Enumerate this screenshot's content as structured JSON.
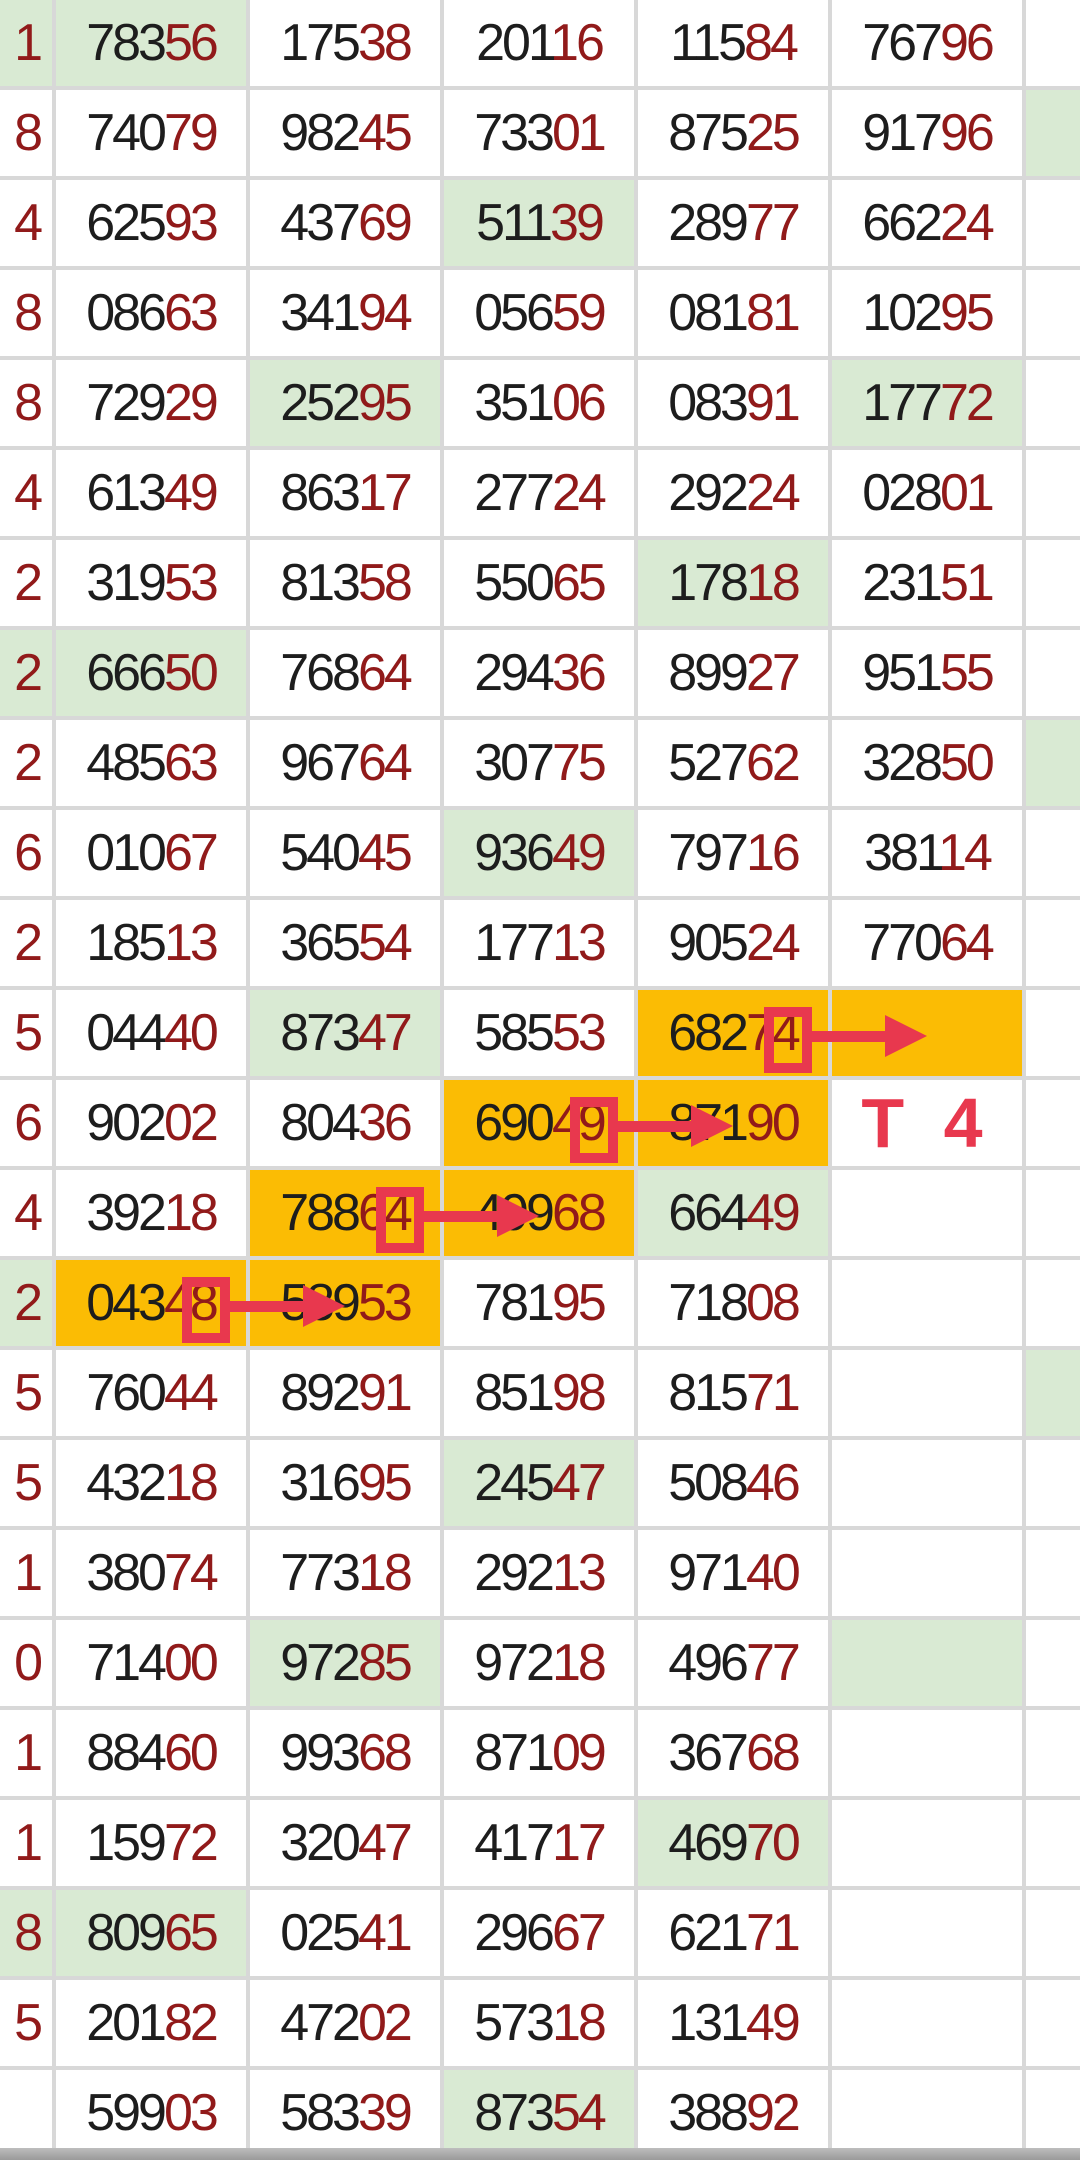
{
  "meta": {
    "description": "Lottery-style number grid with highlighted cells and red annotation marks",
    "red_digit_count": 2,
    "colors": {
      "cell_bg": "#ffffff",
      "grid_line": "#d8d8d8",
      "green_highlight": "#d9ead3",
      "orange_highlight": "#fbbc04",
      "digit_black": "#1d1d1d",
      "digit_red": "#911a1a",
      "annotation_red": "#e8384e"
    }
  },
  "annotations": {
    "t4_label": "T 4",
    "boxes_and_arrows": [
      {
        "row": 12,
        "col": 4,
        "boxed_digit": "4",
        "points_to_col": 5
      },
      {
        "row": 13,
        "col": 3,
        "boxed_digit": "9",
        "points_to_col": 4
      },
      {
        "row": 14,
        "col": 2,
        "boxed_digit": "4",
        "points_to_col": 3
      },
      {
        "row": 15,
        "col": 1,
        "boxed_digit": "8",
        "points_to_col": 2
      }
    ]
  },
  "table": {
    "rows": [
      {
        "left": {
          "d": "1",
          "bg": "green"
        },
        "cells": [
          {
            "v": "78356",
            "bg": "green"
          },
          {
            "v": "17538"
          },
          {
            "v": "20116"
          },
          {
            "v": "11584"
          },
          {
            "v": "76796"
          }
        ],
        "right": {
          "bg": ""
        }
      },
      {
        "left": {
          "d": "8",
          "bg": ""
        },
        "cells": [
          {
            "v": "74079"
          },
          {
            "v": "98245"
          },
          {
            "v": "73301"
          },
          {
            "v": "87525"
          },
          {
            "v": "91796"
          }
        ],
        "right": {
          "bg": "green"
        }
      },
      {
        "left": {
          "d": "4",
          "bg": ""
        },
        "cells": [
          {
            "v": "62593"
          },
          {
            "v": "43769"
          },
          {
            "v": "51139",
            "bg": "green"
          },
          {
            "v": "28977"
          },
          {
            "v": "66224"
          }
        ],
        "right": {
          "bg": ""
        }
      },
      {
        "left": {
          "d": "8",
          "bg": ""
        },
        "cells": [
          {
            "v": "08663"
          },
          {
            "v": "34194"
          },
          {
            "v": "05659"
          },
          {
            "v": "08181"
          },
          {
            "v": "10295"
          }
        ],
        "right": {
          "bg": ""
        }
      },
      {
        "left": {
          "d": "8",
          "bg": ""
        },
        "cells": [
          {
            "v": "72929"
          },
          {
            "v": "25295",
            "bg": "green"
          },
          {
            "v": "35106"
          },
          {
            "v": "08391"
          },
          {
            "v": "17772",
            "bg": "green"
          }
        ],
        "right": {
          "bg": ""
        }
      },
      {
        "left": {
          "d": "4",
          "bg": ""
        },
        "cells": [
          {
            "v": "61349"
          },
          {
            "v": "86317"
          },
          {
            "v": "27724"
          },
          {
            "v": "29224"
          },
          {
            "v": "02801"
          }
        ],
        "right": {
          "bg": ""
        }
      },
      {
        "left": {
          "d": "2",
          "bg": ""
        },
        "cells": [
          {
            "v": "31953"
          },
          {
            "v": "81358"
          },
          {
            "v": "55065"
          },
          {
            "v": "17818",
            "bg": "green"
          },
          {
            "v": "23151"
          }
        ],
        "right": {
          "bg": ""
        }
      },
      {
        "left": {
          "d": "2",
          "bg": "green"
        },
        "cells": [
          {
            "v": "66650",
            "bg": "green"
          },
          {
            "v": "76864"
          },
          {
            "v": "29436"
          },
          {
            "v": "89927"
          },
          {
            "v": "95155"
          }
        ],
        "right": {
          "bg": ""
        }
      },
      {
        "left": {
          "d": "2",
          "bg": ""
        },
        "cells": [
          {
            "v": "48563"
          },
          {
            "v": "96764"
          },
          {
            "v": "30775"
          },
          {
            "v": "52762"
          },
          {
            "v": "32850"
          }
        ],
        "right": {
          "bg": "green"
        }
      },
      {
        "left": {
          "d": "6",
          "bg": ""
        },
        "cells": [
          {
            "v": "01067"
          },
          {
            "v": "54045"
          },
          {
            "v": "93649",
            "bg": "green"
          },
          {
            "v": "79716"
          },
          {
            "v": "38114"
          }
        ],
        "right": {
          "bg": ""
        }
      },
      {
        "left": {
          "d": "2",
          "bg": ""
        },
        "cells": [
          {
            "v": "18513"
          },
          {
            "v": "36554"
          },
          {
            "v": "17713"
          },
          {
            "v": "90524"
          },
          {
            "v": "77064"
          }
        ],
        "right": {
          "bg": ""
        }
      },
      {
        "left": {
          "d": "5",
          "bg": ""
        },
        "cells": [
          {
            "v": "04440"
          },
          {
            "v": "87347",
            "bg": "green"
          },
          {
            "v": "58553"
          },
          {
            "v": "68274",
            "bg": "orange"
          },
          {
            "v": "",
            "bg": "orange"
          }
        ],
        "right": {
          "bg": ""
        }
      },
      {
        "left": {
          "d": "6",
          "bg": ""
        },
        "cells": [
          {
            "v": "90202"
          },
          {
            "v": "80436"
          },
          {
            "v": "69049",
            "bg": "orange"
          },
          {
            "v": "87190",
            "bg": "orange"
          },
          {
            "v": "",
            "label": "T 4"
          }
        ],
        "right": {
          "bg": ""
        }
      },
      {
        "left": {
          "d": "4",
          "bg": ""
        },
        "cells": [
          {
            "v": "39218"
          },
          {
            "v": "78864",
            "bg": "orange"
          },
          {
            "v": "49968",
            "bg": "orange"
          },
          {
            "v": "66449",
            "bg": "green"
          },
          {
            "v": ""
          }
        ],
        "right": {
          "bg": ""
        }
      },
      {
        "left": {
          "d": "2",
          "bg": "green"
        },
        "cells": [
          {
            "v": "04348",
            "bg": "orange"
          },
          {
            "v": "58953",
            "bg": "orange"
          },
          {
            "v": "78195"
          },
          {
            "v": "71808"
          },
          {
            "v": ""
          }
        ],
        "right": {
          "bg": ""
        }
      },
      {
        "left": {
          "d": "5",
          "bg": ""
        },
        "cells": [
          {
            "v": "76044"
          },
          {
            "v": "89291"
          },
          {
            "v": "85198"
          },
          {
            "v": "81571"
          },
          {
            "v": ""
          }
        ],
        "right": {
          "bg": "green"
        }
      },
      {
        "left": {
          "d": "5",
          "bg": ""
        },
        "cells": [
          {
            "v": "43218"
          },
          {
            "v": "31695"
          },
          {
            "v": "24547",
            "bg": "green"
          },
          {
            "v": "50846"
          },
          {
            "v": ""
          }
        ],
        "right": {
          "bg": ""
        }
      },
      {
        "left": {
          "d": "1",
          "bg": ""
        },
        "cells": [
          {
            "v": "38074"
          },
          {
            "v": "77318"
          },
          {
            "v": "29213"
          },
          {
            "v": "97140"
          },
          {
            "v": ""
          }
        ],
        "right": {
          "bg": ""
        }
      },
      {
        "left": {
          "d": "0",
          "bg": ""
        },
        "cells": [
          {
            "v": "71400"
          },
          {
            "v": "97285",
            "bg": "green"
          },
          {
            "v": "97218"
          },
          {
            "v": "49677"
          },
          {
            "v": "",
            "bg": "green"
          }
        ],
        "right": {
          "bg": ""
        }
      },
      {
        "left": {
          "d": "1",
          "bg": ""
        },
        "cells": [
          {
            "v": "88460"
          },
          {
            "v": "99368"
          },
          {
            "v": "87109"
          },
          {
            "v": "36768"
          },
          {
            "v": ""
          }
        ],
        "right": {
          "bg": ""
        }
      },
      {
        "left": {
          "d": "1",
          "bg": ""
        },
        "cells": [
          {
            "v": "15972"
          },
          {
            "v": "32047"
          },
          {
            "v": "41717"
          },
          {
            "v": "46970",
            "bg": "green"
          },
          {
            "v": ""
          }
        ],
        "right": {
          "bg": ""
        }
      },
      {
        "left": {
          "d": "8",
          "bg": "green"
        },
        "cells": [
          {
            "v": "80965",
            "bg": "green"
          },
          {
            "v": "02541"
          },
          {
            "v": "29667"
          },
          {
            "v": "62171"
          },
          {
            "v": ""
          }
        ],
        "right": {
          "bg": ""
        }
      },
      {
        "left": {
          "d": "5",
          "bg": ""
        },
        "cells": [
          {
            "v": "20182"
          },
          {
            "v": "47202"
          },
          {
            "v": "57318"
          },
          {
            "v": "13149"
          },
          {
            "v": ""
          }
        ],
        "right": {
          "bg": ""
        }
      },
      {
        "left": {
          "d": "",
          "bg": ""
        },
        "cells": [
          {
            "v": "59903"
          },
          {
            "v": "58339"
          },
          {
            "v": "87354",
            "bg": "green"
          },
          {
            "v": "38892"
          },
          {
            "v": ""
          }
        ],
        "right": {
          "bg": ""
        }
      }
    ]
  }
}
